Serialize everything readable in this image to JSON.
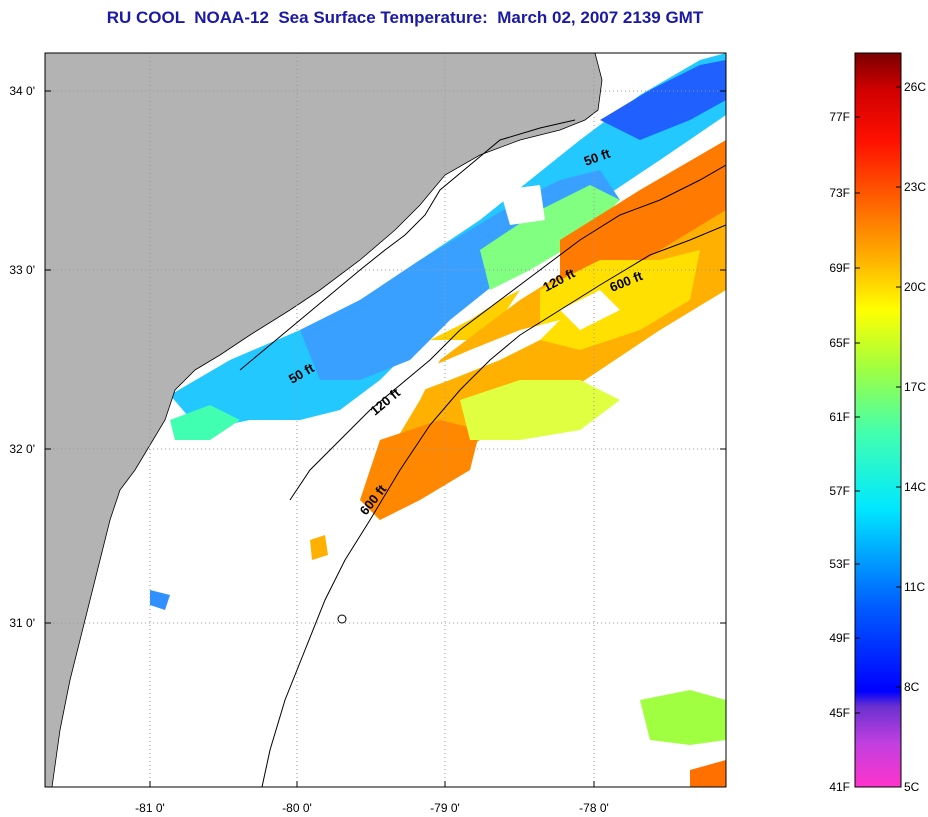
{
  "title": "RU COOL  NOAA-12  Sea Surface Temperature:  March 02, 2007 2139 GMT",
  "axes": {
    "y_labels": [
      "34 0'",
      "33 0'",
      "32 0'",
      "31 0'"
    ],
    "x_labels": [
      "-81 0'",
      "-80 0'",
      "-79 0'",
      "-78 0'"
    ]
  },
  "isobaths": {
    "labels": [
      "50 ft",
      "50 ft",
      "120 ft",
      "120 ft",
      "600 ft",
      "600 ft"
    ]
  },
  "colorbar": {
    "fahrenheit_labels": [
      "77F",
      "73F",
      "69F",
      "65F",
      "61F",
      "57F",
      "53F",
      "49F",
      "45F",
      "41F"
    ],
    "celsius_labels": [
      "26C",
      "23C",
      "20C",
      "17C",
      "14C",
      "11C",
      "8C",
      "5C"
    ]
  },
  "colors": {
    "title": "#1a1aa6",
    "land": "#b3b3b3",
    "cloud": "#ffffff",
    "grid": "#9a9a9a"
  }
}
